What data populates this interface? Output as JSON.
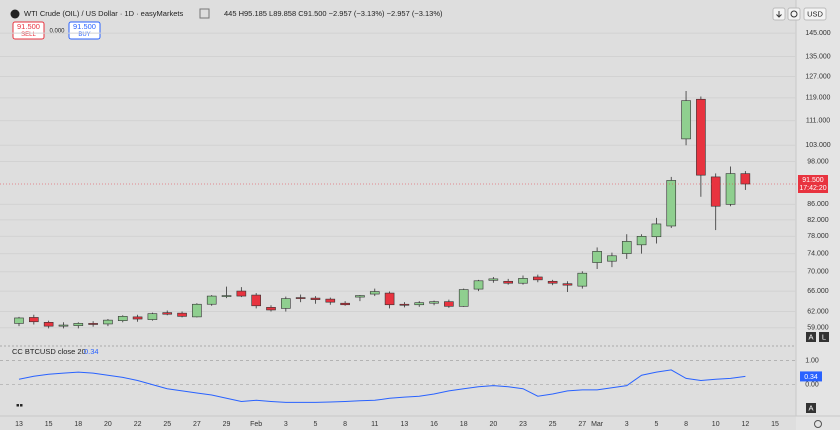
{
  "header": {
    "title": "WTI Crude (OIL) / US Dollar · 1D · easyMarkets",
    "readout": "445 H95.185 L89.858 C91.500 −2.957 (−3.13%) −2.957 (−3.13%)"
  },
  "trade": {
    "sell_price": "91.500",
    "sell_label": "SELL",
    "spread": "0.000",
    "buy_price": "91.500",
    "buy_label": "BUY"
  },
  "toolbar": {
    "currency": "USD",
    "auto": "A",
    "log": "L"
  },
  "chart_data": [
    {
      "type": "candlestick",
      "log_scale": true,
      "grid": true,
      "categories": [
        "13",
        null,
        "15",
        null,
        "18",
        null,
        "20",
        null,
        "22",
        null,
        "25",
        null,
        "27",
        null,
        "29",
        null,
        "Feb",
        null,
        "3",
        null,
        "5",
        null,
        "8",
        null,
        "11",
        null,
        "13",
        null,
        "16",
        null,
        "18",
        null,
        "20",
        null,
        "23",
        null,
        "25",
        null,
        "27",
        "Mar",
        null,
        "3",
        null,
        "5",
        null,
        "8",
        null,
        "10",
        null,
        "12",
        null,
        "15"
      ],
      "open": [
        59.8,
        60.9,
        60.0,
        59.3,
        59.4,
        59.8,
        59.7,
        60.3,
        61.0,
        60.5,
        61.8,
        61.7,
        61.0,
        63.4,
        65.0,
        66.0,
        65.2,
        62.8,
        62.6,
        64.7,
        64.6,
        64.4,
        63.6,
        64.8,
        65.4,
        65.6,
        63.4,
        63.3,
        63.6,
        63.9,
        63.0,
        66.4,
        68.2,
        68.0,
        67.6,
        68.9,
        68.0,
        67.5,
        67.0,
        72.0,
        72.3,
        74.0,
        76.0,
        77.9,
        80.5,
        105,
        118.5,
        93.5,
        86,
        94.445,
        null,
        null
      ],
      "high": [
        61.0,
        61.4,
        60.3,
        60.0,
        60.0,
        60.2,
        60.6,
        61.3,
        61.4,
        61.8,
        62.2,
        62.0,
        63.6,
        65.2,
        66.9,
        66.8,
        65.6,
        63.2,
        64.9,
        65.3,
        65.0,
        64.7,
        64.0,
        65.2,
        66.5,
        65.9,
        63.8,
        64.0,
        64.1,
        64.3,
        66.5,
        68.3,
        68.9,
        68.5,
        69.2,
        69.4,
        68.3,
        68.0,
        70.1,
        75.4,
        74.2,
        78.5,
        78.5,
        82.5,
        93.5,
        121.5,
        119.5,
        94.5,
        96.5,
        95.185,
        null,
        null
      ],
      "low": [
        59.3,
        59.6,
        58.9,
        58.9,
        58.9,
        59.2,
        59.3,
        60.0,
        60.1,
        60.3,
        61.3,
        60.9,
        60.9,
        63.1,
        64.6,
        64.8,
        62.6,
        62.0,
        62.0,
        63.8,
        63.5,
        63.3,
        63.1,
        64.0,
        65.0,
        62.6,
        62.8,
        62.9,
        63.2,
        62.7,
        62.9,
        66.0,
        67.7,
        67.3,
        67.3,
        67.8,
        67.2,
        65.8,
        66.5,
        70.6,
        71.0,
        72.8,
        74.0,
        76.3,
        80.0,
        103,
        88,
        79.5,
        85.5,
        89.858,
        null,
        null
      ],
      "close": [
        60.8,
        60.1,
        59.3,
        59.5,
        59.8,
        59.6,
        60.4,
        61.1,
        60.6,
        61.6,
        61.5,
        61.1,
        63.4,
        65.0,
        65.1,
        65.0,
        63.1,
        62.3,
        64.5,
        64.6,
        64.3,
        63.8,
        63.3,
        65.1,
        65.9,
        63.3,
        63.2,
        63.7,
        63.9,
        63.0,
        66.3,
        68.1,
        68.5,
        67.6,
        68.6,
        68.3,
        67.6,
        67.2,
        69.7,
        74.5,
        73.5,
        76.8,
        78.0,
        81.0,
        92.5,
        118,
        94,
        85.5,
        94.457,
        91.5,
        null,
        null
      ],
      "ylim": [
        56.5,
        150
      ],
      "yticks": [
        {
          "value": 145,
          "label": "145.000"
        },
        {
          "value": 135,
          "label": "135.000"
        },
        {
          "value": 127,
          "label": "127.000"
        },
        {
          "value": 119,
          "label": "119.000"
        },
        {
          "value": 111,
          "label": "111.000"
        },
        {
          "value": 103,
          "label": "103.000"
        },
        {
          "value": 98,
          "label": "98.000"
        },
        {
          "value": 86,
          "label": "86.000"
        },
        {
          "value": 82,
          "label": "82.000"
        },
        {
          "value": 78,
          "label": "78.000"
        },
        {
          "value": 74,
          "label": "74.000"
        },
        {
          "value": 70,
          "label": "70.000"
        },
        {
          "value": 66,
          "label": "66.000"
        },
        {
          "value": 62,
          "label": "62.000"
        },
        {
          "value": 59,
          "label": "59.000"
        }
      ],
      "up_color": "#8fcf8f",
      "down_color": "#e8333f",
      "last_price_label": "91.500",
      "countdown": "17:42:20"
    },
    {
      "type": "line",
      "title": "CC BTCUSD close 20",
      "series": [
        {
          "color": "#2962ff",
          "values": [
            0.22,
            0.35,
            0.43,
            0.48,
            0.52,
            0.48,
            0.39,
            0.3,
            0.17,
            0,
            -0.17,
            -0.26,
            -0.35,
            -0.43,
            -0.57,
            -0.7,
            -0.65,
            -0.7,
            -0.74,
            -0.74,
            -0.74,
            -0.72,
            -0.7,
            -0.67,
            -0.65,
            -0.57,
            -0.52,
            -0.48,
            -0.39,
            -0.26,
            -0.17,
            -0.09,
            -0.04,
            -0.09,
            -0.17,
            -0.48,
            -0.39,
            -0.26,
            -0.22,
            -0.22,
            -0.13,
            -0.04,
            0.39,
            0.52,
            0.61,
            0.26,
            0.17,
            0.22,
            0.26,
            0.34,
            null,
            null
          ]
        }
      ],
      "last_value_label": "0.34",
      "ylim": [
        -1.22,
        1.52
      ],
      "yticks": [
        {
          "value": 1,
          "label": "1.00"
        },
        {
          "value": 0,
          "label": "0.00"
        }
      ]
    }
  ]
}
